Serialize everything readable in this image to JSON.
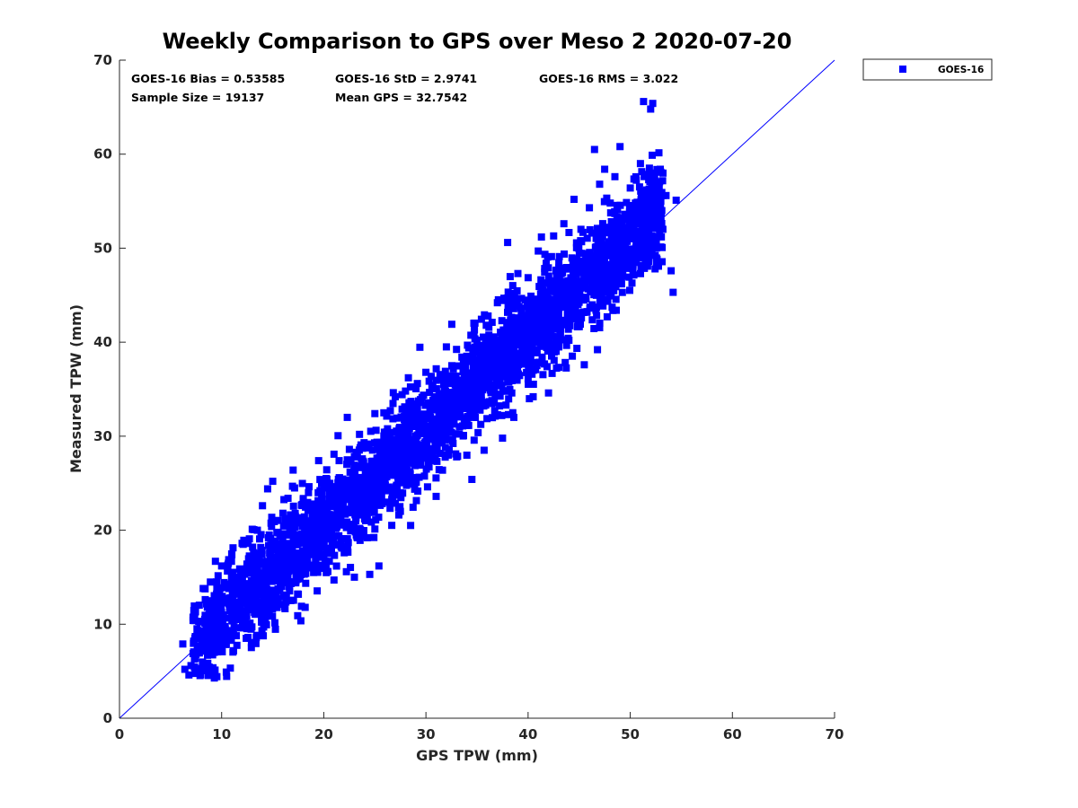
{
  "chart_data": {
    "type": "scatter",
    "title": "Weekly Comparison to GPS over Meso 2 2020-07-20",
    "xlabel": "GPS TPW (mm)",
    "ylabel": "Measured TPW (mm)",
    "xlim": [
      0,
      70
    ],
    "ylim": [
      0,
      70
    ],
    "xticks": [
      0,
      10,
      20,
      30,
      40,
      50,
      60,
      70
    ],
    "yticks": [
      0,
      10,
      20,
      30,
      40,
      50,
      60,
      70
    ],
    "grid": false,
    "legend_position": "outside-top-right",
    "colors": {
      "series": "#0000ff",
      "reference_line": "#0000ff",
      "axis": "#262626"
    },
    "reference_line": {
      "label": "1:1",
      "x": [
        0,
        70
      ],
      "y": [
        0,
        70
      ]
    },
    "stats": {
      "bias": "GOES-16 Bias = 0.53585",
      "std": "GOES-16 StD = 2.9741",
      "rms": "GOES-16 RMS = 3.022",
      "sample_size": "Sample Size = 19137",
      "mean_gps": "Mean GPS = 32.7542"
    },
    "series": [
      {
        "name": "GOES-16",
        "marker": "square",
        "cloud_band": {
          "x_range": [
            6,
            54.5
          ],
          "center_slope": 1.01,
          "center_offset": 0.5,
          "std": 2.97
        },
        "points": [
          [
            6.2,
            7.9
          ],
          [
            6.4,
            5.2
          ],
          [
            6.8,
            4.6
          ],
          [
            7.0,
            5.6
          ],
          [
            7.2,
            10.4
          ],
          [
            7.5,
            6.8
          ],
          [
            7.9,
            5.0
          ],
          [
            8.2,
            13.8
          ],
          [
            8.6,
            11.8
          ],
          [
            9.0,
            7.3
          ],
          [
            9.5,
            14.5
          ],
          [
            10.0,
            16.2
          ],
          [
            10.5,
            9.2
          ],
          [
            11.0,
            17.4
          ],
          [
            11.5,
            10.5
          ],
          [
            12.0,
            18.6
          ],
          [
            12.5,
            11.6
          ],
          [
            13.0,
            20.1
          ],
          [
            13.5,
            12.4
          ],
          [
            14.0,
            22.6
          ],
          [
            14.5,
            24.4
          ],
          [
            15.0,
            25.2
          ],
          [
            15.5,
            13.6
          ],
          [
            16.0,
            21.8
          ],
          [
            16.5,
            23.4
          ],
          [
            17.0,
            26.4
          ],
          [
            17.5,
            15.2
          ],
          [
            18.0,
            19.5
          ],
          [
            18.5,
            24.0
          ],
          [
            19.0,
            15.5
          ],
          [
            19.5,
            27.4
          ],
          [
            20.0,
            18.2
          ],
          [
            20.5,
            24.6
          ],
          [
            21.0,
            14.7
          ],
          [
            21.5,
            27.4
          ],
          [
            22.0,
            17.6
          ],
          [
            22.5,
            28.6
          ],
          [
            23.0,
            15.0
          ],
          [
            23.5,
            30.2
          ],
          [
            24.0,
            21.2
          ],
          [
            24.5,
            15.3
          ],
          [
            25.0,
            32.4
          ],
          [
            25.4,
            16.2
          ],
          [
            26.0,
            25.4
          ],
          [
            27.0,
            34.2
          ],
          [
            27.5,
            22.0
          ],
          [
            28.0,
            34.8
          ],
          [
            28.5,
            20.5
          ],
          [
            29.0,
            33.1
          ],
          [
            30.0,
            36.8
          ],
          [
            30.5,
            27.4
          ],
          [
            31.0,
            23.6
          ],
          [
            32.0,
            39.5
          ],
          [
            32.5,
            30.4
          ],
          [
            33.0,
            27.8
          ],
          [
            34.0,
            38.5
          ],
          [
            34.5,
            25.4
          ],
          [
            35.0,
            40.2
          ],
          [
            36.0,
            33.6
          ],
          [
            37.0,
            44.2
          ],
          [
            37.5,
            29.8
          ],
          [
            38.0,
            50.6
          ],
          [
            38.5,
            32.5
          ],
          [
            39.0,
            47.3
          ],
          [
            40.0,
            36.1
          ],
          [
            40.5,
            34.2
          ],
          [
            41.0,
            49.7
          ],
          [
            42.0,
            34.6
          ],
          [
            42.5,
            51.3
          ],
          [
            43.0,
            39.5
          ],
          [
            43.5,
            52.6
          ],
          [
            44.0,
            40.2
          ],
          [
            44.5,
            55.2
          ],
          [
            45.0,
            42.4
          ],
          [
            45.5,
            37.6
          ],
          [
            46.0,
            54.3
          ],
          [
            46.5,
            60.5
          ],
          [
            47.0,
            56.8
          ],
          [
            47.5,
            58.4
          ],
          [
            48.0,
            45.2
          ],
          [
            48.5,
            57.6
          ],
          [
            49.0,
            60.8
          ],
          [
            49.5,
            48.4
          ],
          [
            50.0,
            56.4
          ],
          [
            50.5,
            54.8
          ],
          [
            51.0,
            59.0
          ],
          [
            51.3,
            65.6
          ],
          [
            51.5,
            48.6
          ],
          [
            52.0,
            64.8
          ],
          [
            52.2,
            65.4
          ],
          [
            52.5,
            56.2
          ],
          [
            53.0,
            53.2
          ],
          [
            53.5,
            55.6
          ],
          [
            54.0,
            47.6
          ],
          [
            54.2,
            45.3
          ],
          [
            54.5,
            55.1
          ]
        ]
      }
    ]
  }
}
